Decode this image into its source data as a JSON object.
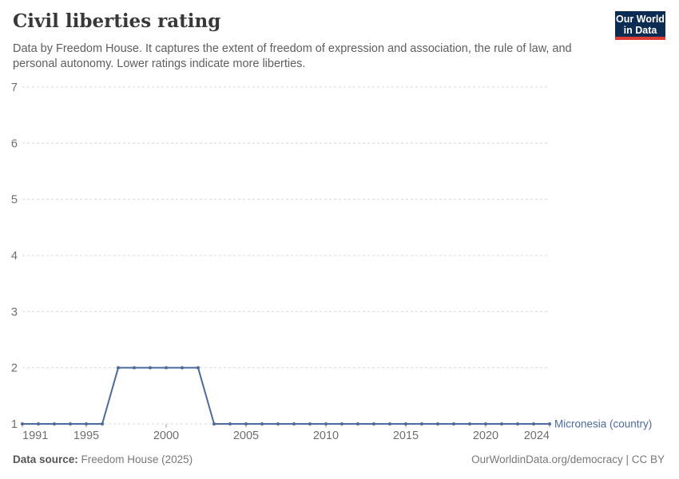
{
  "header": {
    "title": "Civil liberties rating",
    "subtitle_line1": "Data by Freedom House. It captures the extent of freedom of expression and association, the rule of law, and",
    "subtitle_line2": "personal autonomy. Lower ratings indicate more liberties."
  },
  "logo": {
    "line1": "Our World",
    "line2": "in Data"
  },
  "chart_data": {
    "type": "line",
    "title": "Civil liberties rating",
    "x": [
      1991,
      1992,
      1993,
      1994,
      1995,
      1996,
      1997,
      1998,
      1999,
      2000,
      2001,
      2002,
      2003,
      2004,
      2005,
      2006,
      2007,
      2008,
      2009,
      2010,
      2011,
      2012,
      2013,
      2014,
      2015,
      2016,
      2017,
      2018,
      2019,
      2020,
      2021,
      2022,
      2023,
      2024
    ],
    "series": [
      {
        "name": "Micronesia (country)",
        "color": "#4C6A9C",
        "values": [
          1,
          1,
          1,
          1,
          1,
          1,
          2,
          2,
          2,
          2,
          2,
          2,
          1,
          1,
          1,
          1,
          1,
          1,
          1,
          1,
          1,
          1,
          1,
          1,
          1,
          1,
          1,
          1,
          1,
          1,
          1,
          1,
          1,
          1
        ]
      }
    ],
    "xlabel": "",
    "ylabel": "",
    "ylim": [
      1,
      7
    ],
    "yticks": [
      1,
      2,
      3,
      4,
      5,
      6,
      7
    ],
    "xticks": [
      1991,
      1995,
      2000,
      2005,
      2010,
      2015,
      2020,
      2024
    ],
    "grid": "horizontal-dashed",
    "legend_position": "end-of-line"
  },
  "footer": {
    "source_label": "Data source:",
    "source_value": " Freedom House (2025)",
    "attribution": "OurWorldinData.org/democracy | CC BY"
  },
  "colors": {
    "series": "#4C6A9C",
    "grid": "#d9d9d9",
    "axis_text": "#6e6e6e",
    "tick_mark": "#999999",
    "logo_bg": "#0d2c54",
    "logo_accent": "#dc3d33"
  }
}
